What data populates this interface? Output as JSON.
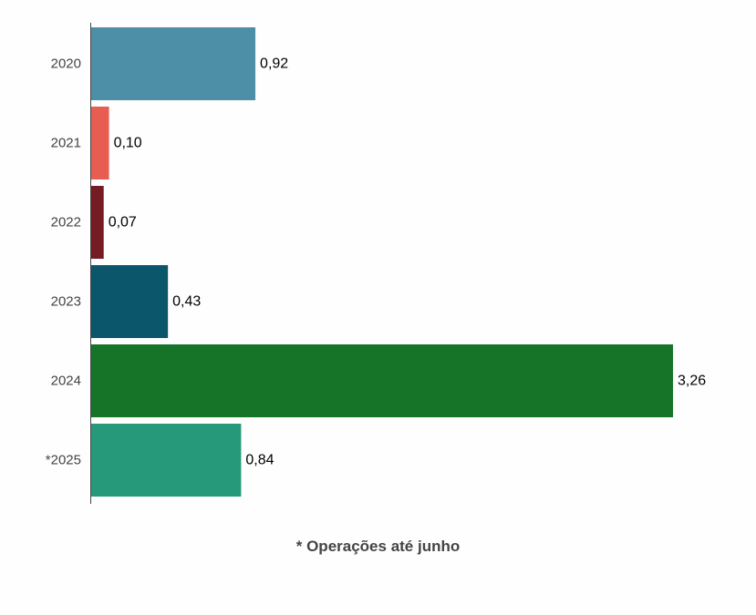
{
  "chart_data": {
    "type": "bar",
    "orientation": "horizontal",
    "categories": [
      "2020",
      "2021",
      "2022",
      "2023",
      "2024",
      "*2025"
    ],
    "values": [
      0.92,
      0.1,
      0.07,
      0.43,
      3.26,
      0.84
    ],
    "value_labels": [
      "0,92",
      "0,10",
      "0,07",
      "0,43",
      "3,26",
      "0,84"
    ],
    "colors": [
      "#4c8fa6",
      "#e85d52",
      "#751b24",
      "#0c566c",
      "#167428",
      "#26997a"
    ],
    "xlim": [
      0,
      3.26
    ],
    "grid": false,
    "title": "",
    "xlabel": "",
    "ylabel": ""
  },
  "footnote": "* Operações até junho"
}
